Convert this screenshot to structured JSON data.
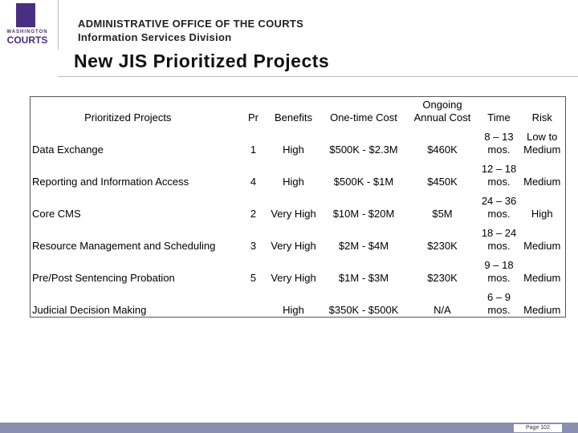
{
  "header": {
    "logo": [
      "WASHINGTON",
      "COURTS"
    ],
    "org": "ADMINISTRATIVE OFFICE OF THE COURTS",
    "division": "Information Services Division"
  },
  "title": "New JIS Prioritized Projects",
  "table": {
    "columns": [
      "Prioritized Projects",
      "Pr",
      "Benefits",
      "One-time Cost",
      "Ongoing Annual Cost",
      "Time",
      "Risk"
    ],
    "rows": [
      [
        "Data Exchange",
        "1",
        "High",
        "$500K - $2.3M",
        "$460K",
        "8 – 13 mos.",
        "Low to Medium"
      ],
      [
        "Reporting and Information Access",
        "4",
        "High",
        "$500K - $1M",
        "$450K",
        "12 – 18 mos.",
        "Medium"
      ],
      [
        "Core CMS",
        "2",
        "Very High",
        "$10M - $20M",
        "$5M",
        "24 – 36 mos.",
        "High"
      ],
      [
        "Resource Management and Scheduling",
        "3",
        "Very High",
        "$2M - $4M",
        "$230K",
        "18 – 24 mos.",
        "Medium"
      ],
      [
        "Pre/Post Sentencing Probation",
        "5",
        "Very High",
        "$1M - $3M",
        "$230K",
        "9 – 18 mos.",
        "Medium"
      ],
      [
        "Judicial Decision Making",
        null,
        "High",
        "$350K - $500K",
        "N/A",
        "6 – 9 mos.",
        "Medium"
      ]
    ]
  },
  "footer": {
    "page": "Page 102"
  }
}
